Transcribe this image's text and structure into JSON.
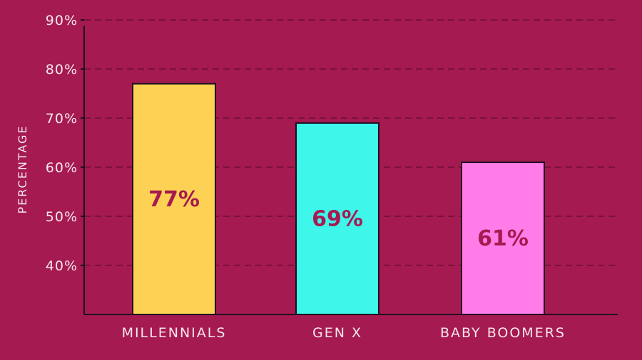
{
  "chart_data": {
    "type": "bar",
    "categories": [
      "MILLENNIALS",
      "GEN X",
      "BABY BOOMERS"
    ],
    "values": [
      77,
      69,
      61
    ],
    "data_labels": [
      "77%",
      "69%",
      "61%"
    ],
    "colors": [
      "#fdd254",
      "#3ef6ea",
      "#ff7ce9"
    ],
    "ylabel": "PERCENTAGE",
    "ylim": [
      30,
      90
    ],
    "yticks": [
      40,
      50,
      60,
      70,
      80,
      90
    ],
    "ytick_labels": [
      "40%",
      "50%",
      "60%",
      "70%",
      "80%",
      "90%"
    ],
    "grid": true,
    "background": "#a51a50",
    "axis_color": "#1e1020"
  }
}
